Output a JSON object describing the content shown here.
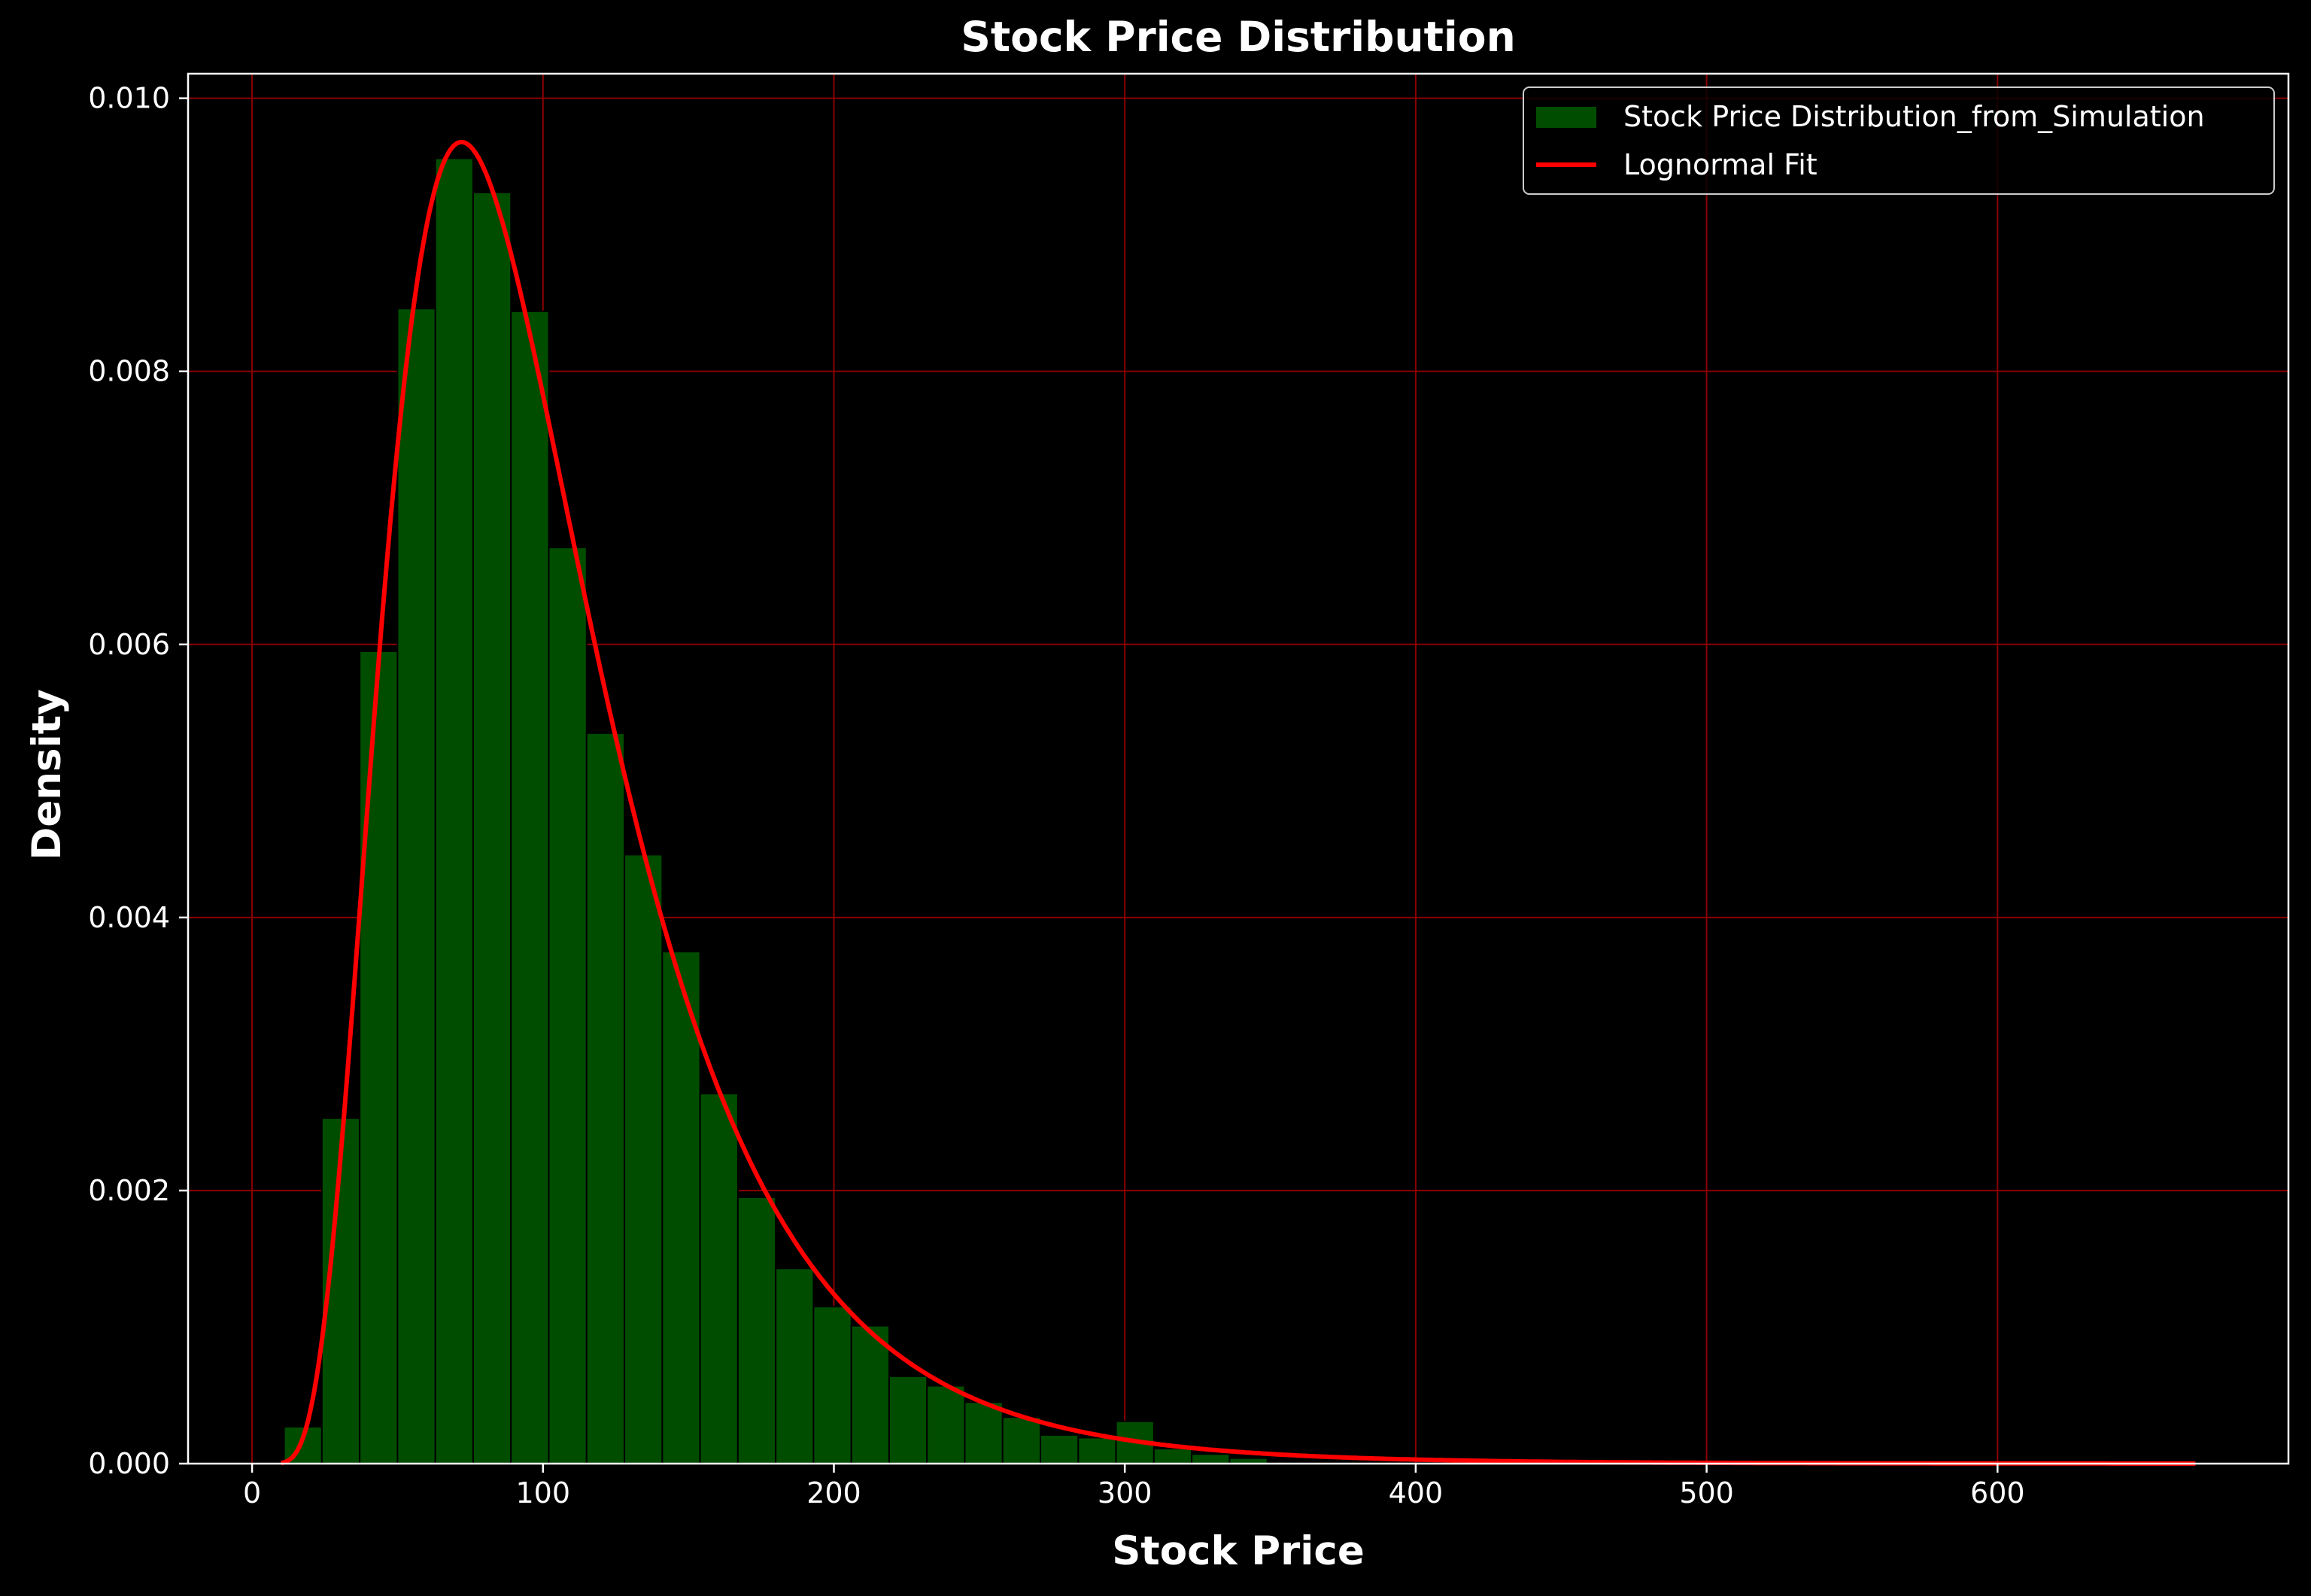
{
  "chart_data": {
    "type": "bar",
    "title": "Stock Price Distribution",
    "xlabel": "Stock Price",
    "ylabel": "Density",
    "xlim": [
      -22,
      700
    ],
    "ylim": [
      0,
      0.01018
    ],
    "xticks": [
      0,
      100,
      200,
      300,
      400,
      500,
      600
    ],
    "yticks": [
      0.0,
      0.002,
      0.004,
      0.006,
      0.008,
      0.01
    ],
    "xtick_labels": [
      "0",
      "100",
      "200",
      "300",
      "400",
      "500",
      "600"
    ],
    "ytick_labels": [
      "0.000",
      "0.002",
      "0.004",
      "0.006",
      "0.008",
      "0.010"
    ],
    "grid": true,
    "legend_position": "top-right",
    "colors": {
      "background": "#000000",
      "histogram": "#004d00",
      "histogram_edge": "#000000",
      "fit_line": "#ff0000",
      "grid": "#8b0000",
      "axes": "#ffffff"
    },
    "histogram": {
      "name": "Stock Price Distribution_from_Simulation",
      "bin_edges": [
        11,
        24,
        37,
        50,
        63,
        76,
        89,
        102,
        115,
        128,
        141,
        154,
        167,
        180,
        193,
        206,
        219,
        232,
        245,
        258,
        271,
        284,
        297,
        310,
        323,
        336,
        349
      ],
      "densities": [
        0.00027,
        0.00253,
        0.00595,
        0.00846,
        0.00956,
        0.00931,
        0.00844,
        0.00671,
        0.00535,
        0.00446,
        0.00375,
        0.00271,
        0.00195,
        0.00143,
        0.00115,
        0.00101,
        0.00064,
        0.00057,
        0.00045,
        0.00034,
        0.00021,
        0.00019,
        0.00031,
        0.00011,
        7e-05,
        4e-05
      ]
    },
    "fit": {
      "name": "Lognormal Fit",
      "distribution": "lognormal",
      "x_range": [
        10,
        668
      ],
      "peak_x": 72,
      "peak_density": 0.00968
    }
  }
}
